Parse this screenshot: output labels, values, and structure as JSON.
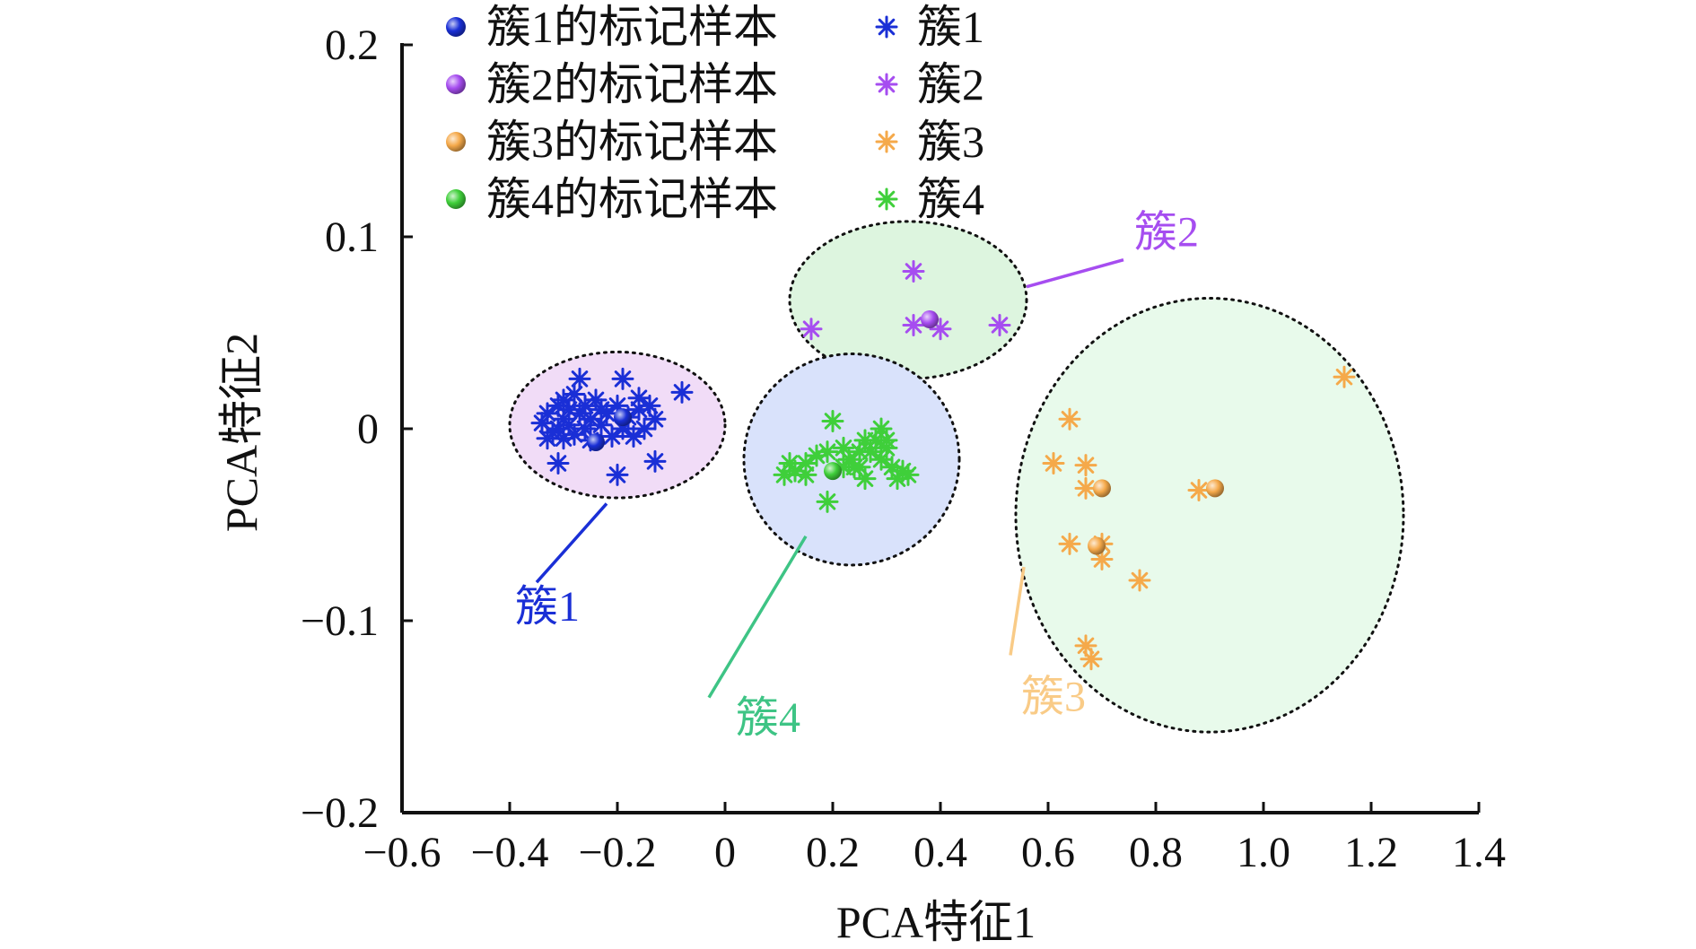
{
  "chart_data": {
    "type": "scatter",
    "title": "",
    "xlabel": "PCA特征1",
    "ylabel": "PCA特征2",
    "xlim": [
      -0.6,
      1.4
    ],
    "ylim": [
      -0.2,
      0.2
    ],
    "xticks": [
      -0.6,
      -0.4,
      -0.2,
      0,
      0.2,
      0.4,
      0.6,
      0.8,
      1.0,
      1.2,
      1.4
    ],
    "xtick_labels": [
      "−0.6",
      "−0.4",
      "−0.2",
      "0",
      "0.2",
      "0.4",
      "0.6",
      "0.8",
      "1.0",
      "1.2",
      "1.4"
    ],
    "yticks": [
      -0.2,
      -0.1,
      0,
      0.1,
      0.2
    ],
    "ytick_labels": [
      "−0.2",
      "−0.1",
      "0",
      "0.1",
      "0.2"
    ],
    "grid": false,
    "legend_position": "top-left",
    "legend": [
      {
        "label": "簇1的标记样本",
        "marker": "sphere",
        "color": "#1a2fd6"
      },
      {
        "label": "簇1",
        "marker": "asterisk",
        "color": "#1a2fd6"
      },
      {
        "label": "簇2的标记样本",
        "marker": "sphere",
        "color": "#a64df0"
      },
      {
        "label": "簇2",
        "marker": "asterisk",
        "color": "#a64df0"
      },
      {
        "label": "簇3的标记样本",
        "marker": "sphere",
        "color": "#f5a94a"
      },
      {
        "label": "簇3",
        "marker": "asterisk",
        "color": "#f5a94a"
      },
      {
        "label": "簇4的标记样本",
        "marker": "sphere",
        "color": "#3fcf3a"
      },
      {
        "label": "簇4",
        "marker": "asterisk",
        "color": "#3fcf3a"
      }
    ],
    "series": [
      {
        "name": "簇1",
        "cluster_label": "簇1",
        "color": "#1a2fd6",
        "label_color": "#1a2fd6",
        "ellipse": {
          "cx": -0.2,
          "cy": 0.002,
          "rx": 0.2,
          "ry": 0.038,
          "fill": "#f1dcf7"
        },
        "label_pos": [
          -0.39,
          -0.1
        ],
        "leader": [
          [
            -0.35,
            -0.08
          ],
          [
            -0.22,
            -0.039
          ]
        ],
        "labeled_samples": [
          [
            -0.24,
            -0.007
          ],
          [
            -0.19,
            0.006
          ]
        ],
        "points": [
          [
            -0.34,
            0.003
          ],
          [
            -0.33,
            0.008
          ],
          [
            -0.32,
            -0.002
          ],
          [
            -0.31,
            0.012
          ],
          [
            -0.31,
            0.0
          ],
          [
            -0.3,
            0.005
          ],
          [
            -0.3,
            -0.005
          ],
          [
            -0.29,
            0.01
          ],
          [
            -0.29,
            0.002
          ],
          [
            -0.28,
            0.018
          ],
          [
            -0.28,
            -0.003
          ],
          [
            -0.27,
            0.008
          ],
          [
            -0.27,
            0.026
          ],
          [
            -0.26,
            0.0
          ],
          [
            -0.26,
            0.012
          ],
          [
            -0.25,
            0.005
          ],
          [
            -0.25,
            -0.006
          ],
          [
            -0.24,
            0.015
          ],
          [
            -0.23,
            0.002
          ],
          [
            -0.22,
            0.008
          ],
          [
            -0.21,
            -0.004
          ],
          [
            -0.2,
            0.012
          ],
          [
            -0.19,
            0.026
          ],
          [
            -0.19,
            0.0
          ],
          [
            -0.18,
            0.006
          ],
          [
            -0.17,
            -0.004
          ],
          [
            -0.16,
            0.01
          ],
          [
            -0.15,
            0.0
          ],
          [
            -0.14,
            0.012
          ],
          [
            -0.13,
            0.005
          ],
          [
            -0.08,
            0.019
          ],
          [
            -0.13,
            -0.017
          ],
          [
            -0.2,
            -0.024
          ],
          [
            -0.31,
            -0.018
          ],
          [
            -0.33,
            -0.005
          ],
          [
            -0.3,
            0.015
          ],
          [
            -0.23,
            0.01
          ],
          [
            -0.16,
            0.016
          ]
        ]
      },
      {
        "name": "簇2",
        "cluster_label": "簇2",
        "color": "#a64df0",
        "label_color": "#a64df0",
        "ellipse": {
          "cx": 0.34,
          "cy": 0.067,
          "rx": 0.22,
          "ry": 0.041,
          "fill": "#ddf5df"
        },
        "label_pos": [
          0.76,
          0.095
        ],
        "leader": [
          [
            0.56,
            0.074
          ],
          [
            0.74,
            0.088
          ]
        ],
        "labeled_samples": [
          [
            0.38,
            0.057
          ]
        ],
        "points": [
          [
            0.35,
            0.082
          ],
          [
            0.16,
            0.052
          ],
          [
            0.35,
            0.054
          ],
          [
            0.4,
            0.052
          ],
          [
            0.51,
            0.054
          ]
        ]
      },
      {
        "name": "簇3",
        "cluster_label": "簇3",
        "color": "#f5a94a",
        "label_color": "#f9cb87",
        "ellipse": {
          "cx": 0.9,
          "cy": -0.045,
          "rx": 0.36,
          "ry": 0.113,
          "fill": "#e8faeb"
        },
        "label_pos": [
          0.55,
          -0.147
        ],
        "leader": [
          [
            0.555,
            -0.072
          ],
          [
            0.53,
            -0.118
          ]
        ],
        "labeled_samples": [
          [
            0.7,
            -0.031
          ],
          [
            0.69,
            -0.061
          ],
          [
            0.91,
            -0.031
          ]
        ],
        "points": [
          [
            0.64,
            0.005
          ],
          [
            0.61,
            -0.018
          ],
          [
            0.67,
            -0.019
          ],
          [
            0.67,
            -0.031
          ],
          [
            0.64,
            -0.06
          ],
          [
            0.7,
            -0.06
          ],
          [
            0.7,
            -0.068
          ],
          [
            0.77,
            -0.079
          ],
          [
            0.88,
            -0.032
          ],
          [
            0.67,
            -0.113
          ],
          [
            0.68,
            -0.12
          ],
          [
            1.15,
            0.027
          ]
        ]
      },
      {
        "name": "簇4",
        "cluster_label": "簇4",
        "color": "#3fcf3a",
        "label_color": "#3ec485",
        "ellipse": {
          "cx": 0.235,
          "cy": -0.016,
          "rx": 0.2,
          "ry": 0.055,
          "fill": "#d9e2fb"
        },
        "label_pos": [
          0.02,
          -0.158
        ],
        "leader": [
          [
            -0.03,
            -0.14
          ],
          [
            0.15,
            -0.056
          ]
        ],
        "labeled_samples": [
          [
            0.2,
            -0.022
          ]
        ],
        "points": [
          [
            0.11,
            -0.024
          ],
          [
            0.12,
            -0.018
          ],
          [
            0.13,
            -0.022
          ],
          [
            0.15,
            -0.018
          ],
          [
            0.17,
            -0.014
          ],
          [
            0.19,
            -0.012
          ],
          [
            0.2,
            0.004
          ],
          [
            0.22,
            -0.01
          ],
          [
            0.23,
            -0.016
          ],
          [
            0.24,
            -0.02
          ],
          [
            0.25,
            -0.012
          ],
          [
            0.26,
            -0.006
          ],
          [
            0.27,
            -0.012
          ],
          [
            0.28,
            -0.006
          ],
          [
            0.29,
            0.0
          ],
          [
            0.29,
            -0.016
          ],
          [
            0.3,
            -0.01
          ],
          [
            0.31,
            -0.02
          ],
          [
            0.32,
            -0.026
          ],
          [
            0.33,
            -0.022
          ],
          [
            0.34,
            -0.024
          ],
          [
            0.19,
            -0.038
          ],
          [
            0.26,
            -0.026
          ],
          [
            0.22,
            -0.02
          ],
          [
            0.15,
            -0.024
          ],
          [
            0.25,
            -0.02
          ],
          [
            0.3,
            -0.006
          ]
        ]
      }
    ]
  }
}
